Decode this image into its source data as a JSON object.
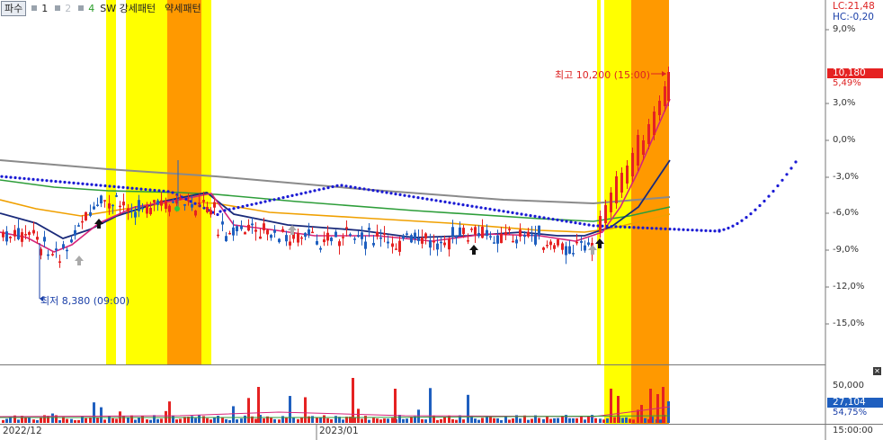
{
  "toolbar": {
    "tab": "파수",
    "items": [
      {
        "num": "1",
        "color": "#222222"
      },
      {
        "num": "2",
        "color": "#b9bec5"
      },
      {
        "num": "4",
        "color": "#2a9d2a"
      }
    ],
    "pattern_strong": "SW 강세패턴",
    "pattern_weak": "약세패턴"
  },
  "right_panel": {
    "lc": "LC:21,48",
    "hc": "HC:-0,20",
    "price": "10,180",
    "price_change": "5,49%",
    "volume_value": "27,104",
    "volume_pct": "54,75%",
    "volume_axis": "50,000",
    "time": "15:00:00"
  },
  "annotations": {
    "high": "최고 10,200 (15:00)",
    "low": "최저 8,380 (09:00)"
  },
  "colors": {
    "up": "#e52222",
    "down": "#1f5fbf",
    "strong_zone": "#ffff00",
    "peak_zone": "#ff9900",
    "parabolic": "#1a1ad4"
  },
  "chart_data": {
    "type": "candlestick",
    "x_labels": [
      "2022/12",
      "2023/01"
    ],
    "y_axis_ticks": [
      "9,0%",
      "6,0%",
      "3,0%",
      "0,0%",
      "-3,0%",
      "-6,0%",
      "-9,0%",
      "-12,0%",
      "-15,0%"
    ],
    "volume_axis_ticks": [
      "50,000"
    ],
    "close_price": 10180,
    "high": 10200,
    "low": 8380,
    "indicators": [
      "MA gray",
      "MA green",
      "MA orange",
      "MA navy",
      "MA magenta",
      "Parabolic SAR"
    ],
    "pattern_zones": [
      "SW 강세패턴",
      "약세패턴"
    ]
  }
}
